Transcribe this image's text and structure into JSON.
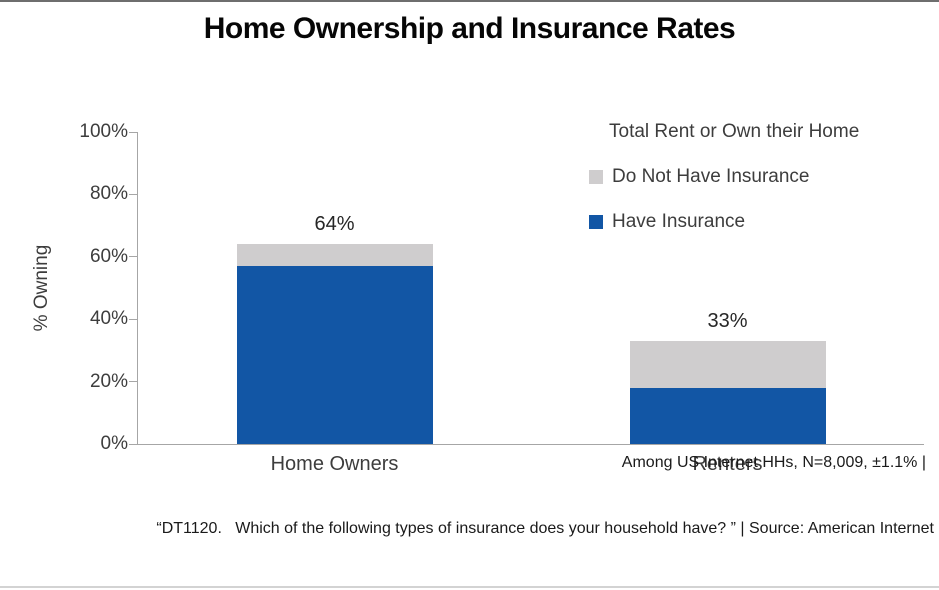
{
  "chart_data": {
    "type": "bar",
    "stacked": true,
    "title": "Home Ownership and Insurance Rates",
    "categories": [
      "Home Owners",
      "Renters"
    ],
    "series": [
      {
        "name": "Have Insurance",
        "color": "#1256A5",
        "values": [
          57,
          18
        ]
      },
      {
        "name": "Do Not Have Insurance",
        "color": "#CFCDCE",
        "values": [
          7,
          15
        ]
      }
    ],
    "totals": [
      64,
      33
    ],
    "total_labels": [
      "64%",
      "33%"
    ],
    "xlabel": "",
    "ylabel": "% Owning",
    "ylim": [
      0,
      100
    ],
    "ytick_interval": 20,
    "ytick_labels": [
      "0%",
      "20%",
      "40%",
      "60%",
      "80%",
      "100%"
    ],
    "grid": false,
    "axis_color": "#A6A6A6",
    "legend": {
      "title": "Total Rent or Own their Home",
      "position": "top-right",
      "entries": [
        {
          "label": "Do Not Have Insurance",
          "color": "#CFCDCE"
        },
        {
          "label": "Have Insurance",
          "color": "#1256A5"
        }
      ]
    },
    "annotations": {
      "sample_note": "Among US Internet HHs, N=8,009, ±1.1% |",
      "source_note": "“DT1120.   Which of the following types of insurance does your household have? ” | Source: American Internet"
    }
  }
}
